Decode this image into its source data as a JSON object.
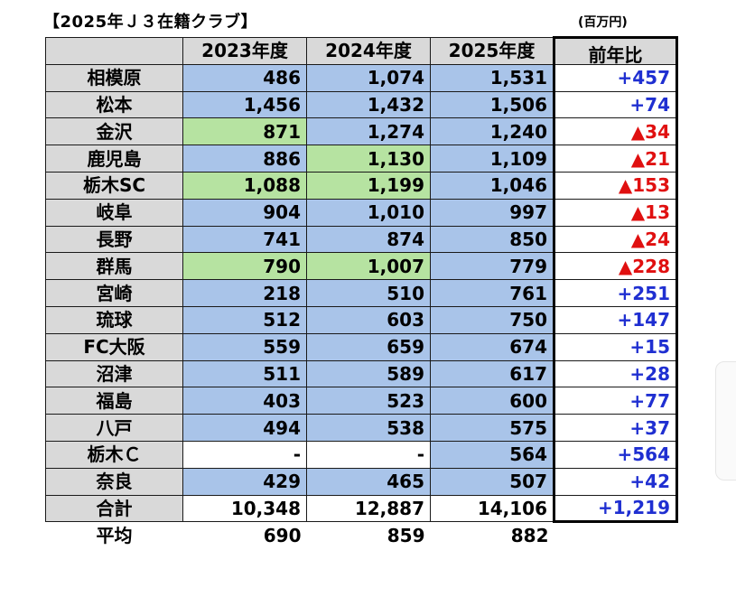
{
  "title": "【2025年Ｊ３在籍クラブ】",
  "unit": "(百万円)",
  "chart_data": {
    "type": "table",
    "columns": [
      "",
      "2023年度",
      "2024年度",
      "2025年度",
      "前年比"
    ],
    "rows": [
      {
        "club": "相模原",
        "v2023": "486",
        "v2024": "1,074",
        "v2025": "1,531",
        "diff": "+457",
        "c2023": "blue",
        "c2024": "blue",
        "c2025": "blue",
        "sign": "pos"
      },
      {
        "club": "松本",
        "v2023": "1,456",
        "v2024": "1,432",
        "v2025": "1,506",
        "diff": "+74",
        "c2023": "blue",
        "c2024": "blue",
        "c2025": "blue",
        "sign": "pos"
      },
      {
        "club": "金沢",
        "v2023": "871",
        "v2024": "1,274",
        "v2025": "1,240",
        "diff": "▲34",
        "c2023": "green",
        "c2024": "blue",
        "c2025": "blue",
        "sign": "neg"
      },
      {
        "club": "鹿児島",
        "v2023": "886",
        "v2024": "1,130",
        "v2025": "1,109",
        "diff": "▲21",
        "c2023": "blue",
        "c2024": "green",
        "c2025": "blue",
        "sign": "neg"
      },
      {
        "club": "栃木SC",
        "v2023": "1,088",
        "v2024": "1,199",
        "v2025": "1,046",
        "diff": "▲153",
        "c2023": "green",
        "c2024": "green",
        "c2025": "blue",
        "sign": "neg"
      },
      {
        "club": "岐阜",
        "v2023": "904",
        "v2024": "1,010",
        "v2025": "997",
        "diff": "▲13",
        "c2023": "blue",
        "c2024": "blue",
        "c2025": "blue",
        "sign": "neg"
      },
      {
        "club": "長野",
        "v2023": "741",
        "v2024": "874",
        "v2025": "850",
        "diff": "▲24",
        "c2023": "blue",
        "c2024": "blue",
        "c2025": "blue",
        "sign": "neg"
      },
      {
        "club": "群馬",
        "v2023": "790",
        "v2024": "1,007",
        "v2025": "779",
        "diff": "▲228",
        "c2023": "green",
        "c2024": "green",
        "c2025": "blue",
        "sign": "neg"
      },
      {
        "club": "宮崎",
        "v2023": "218",
        "v2024": "510",
        "v2025": "761",
        "diff": "+251",
        "c2023": "blue",
        "c2024": "blue",
        "c2025": "blue",
        "sign": "pos"
      },
      {
        "club": "琉球",
        "v2023": "512",
        "v2024": "603",
        "v2025": "750",
        "diff": "+147",
        "c2023": "blue",
        "c2024": "blue",
        "c2025": "blue",
        "sign": "pos"
      },
      {
        "club": "FC大阪",
        "v2023": "559",
        "v2024": "659",
        "v2025": "674",
        "diff": "+15",
        "c2023": "blue",
        "c2024": "blue",
        "c2025": "blue",
        "sign": "pos"
      },
      {
        "club": "沼津",
        "v2023": "511",
        "v2024": "589",
        "v2025": "617",
        "diff": "+28",
        "c2023": "blue",
        "c2024": "blue",
        "c2025": "blue",
        "sign": "pos"
      },
      {
        "club": "福島",
        "v2023": "403",
        "v2024": "523",
        "v2025": "600",
        "diff": "+77",
        "c2023": "blue",
        "c2024": "blue",
        "c2025": "blue",
        "sign": "pos"
      },
      {
        "club": "八戸",
        "v2023": "494",
        "v2024": "538",
        "v2025": "575",
        "diff": "+37",
        "c2023": "blue",
        "c2024": "blue",
        "c2025": "blue",
        "sign": "pos"
      },
      {
        "club": "栃木Ｃ",
        "v2023": "-",
        "v2024": "-",
        "v2025": "564",
        "diff": "+564",
        "c2023": "white",
        "c2024": "white",
        "c2025": "blue",
        "sign": "pos"
      },
      {
        "club": "奈良",
        "v2023": "429",
        "v2024": "465",
        "v2025": "507",
        "diff": "+42",
        "c2023": "blue",
        "c2024": "blue",
        "c2025": "blue",
        "sign": "pos"
      }
    ],
    "total": {
      "label": "合計",
      "v2023": "10,348",
      "v2024": "12,887",
      "v2025": "14,106",
      "diff": "+1,219"
    },
    "average": {
      "label": "平均",
      "v2023": "690",
      "v2024": "859",
      "v2025": "882"
    },
    "colors": {
      "blue": "#a9c4e9",
      "green": "#b6e3a1",
      "white": "#ffffff",
      "header": "#d9d9d9",
      "positive": "#1f2fd1",
      "negative": "#e01010"
    }
  }
}
